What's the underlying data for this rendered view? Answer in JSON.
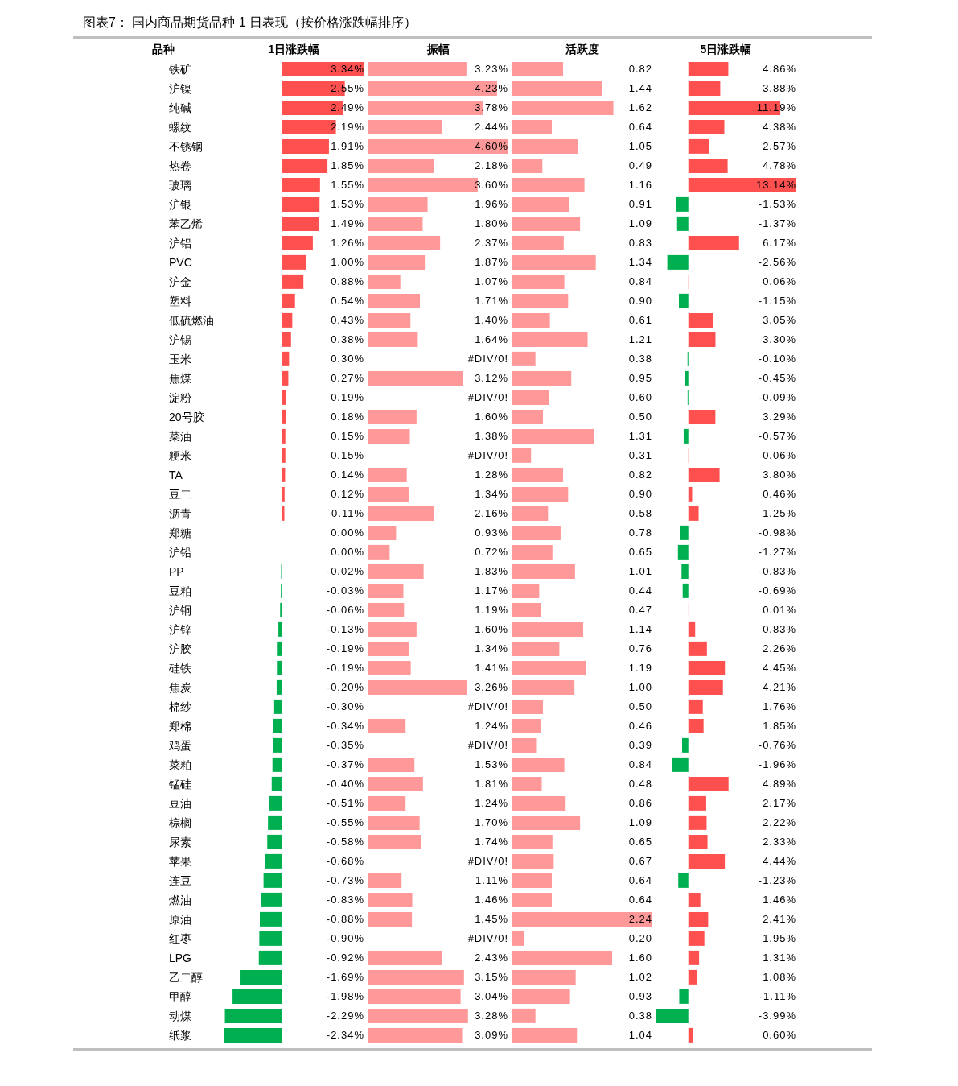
{
  "chart_data": [
    {
      "type": "bar",
      "orientation": "horizontal",
      "title": "图表7： 国内商品期货品种 1 日表现（按价格涨跌幅排序）",
      "ylabel": "品种",
      "xlabel": "1日涨跌幅",
      "categories": [
        "铁矿",
        "沪镍",
        "纯碱",
        "螺纹",
        "不锈钢",
        "热卷",
        "玻璃",
        "沪银",
        "苯乙烯",
        "沪铝",
        "PVC",
        "沪金",
        "塑料",
        "低硫燃油",
        "沪锡",
        "玉米",
        "焦煤",
        "淀粉",
        "20号胶",
        "菜油",
        "粳米",
        "TA",
        "豆二",
        "沥青",
        "郑糖",
        "沪铅",
        "PP",
        "豆粕",
        "沪铜",
        "沪锌",
        "沪胶",
        "硅铁",
        "焦炭",
        "棉纱",
        "郑棉",
        "鸡蛋",
        "菜粕",
        "锰硅",
        "豆油",
        "棕榈",
        "尿素",
        "苹果",
        "连豆",
        "燃油",
        "原油",
        "红枣",
        "LPG",
        "乙二醇",
        "甲醇",
        "动煤",
        "纸浆"
      ],
      "values": [
        3.34,
        2.55,
        2.49,
        2.19,
        1.91,
        1.85,
        1.55,
        1.53,
        1.49,
        1.26,
        1.0,
        0.88,
        0.54,
        0.43,
        0.38,
        0.3,
        0.27,
        0.19,
        0.18,
        0.15,
        0.15,
        0.14,
        0.12,
        0.11,
        0.0,
        0.0,
        -0.02,
        -0.03,
        -0.06,
        -0.13,
        -0.19,
        -0.19,
        -0.2,
        -0.3,
        -0.34,
        -0.35,
        -0.37,
        -0.4,
        -0.51,
        -0.55,
        -0.58,
        -0.68,
        -0.73,
        -0.83,
        -0.88,
        -0.9,
        -0.92,
        -1.69,
        -1.98,
        -2.29,
        -2.34
      ],
      "value_labels": [
        "3.34%",
        "2.55%",
        "2.49%",
        "2.19%",
        "1.91%",
        "1.85%",
        "1.55%",
        "1.53%",
        "1.49%",
        "1.26%",
        "1.00%",
        "0.88%",
        "0.54%",
        "0.43%",
        "0.38%",
        "0.30%",
        "0.27%",
        "0.19%",
        "0.18%",
        "0.15%",
        "0.15%",
        "0.14%",
        "0.12%",
        "0.11%",
        "0.00%",
        "0.00%",
        "-0.02%",
        "-0.03%",
        "-0.06%",
        "-0.13%",
        "-0.19%",
        "-0.19%",
        "-0.20%",
        "-0.30%",
        "-0.34%",
        "-0.35%",
        "-0.37%",
        "-0.40%",
        "-0.51%",
        "-0.55%",
        "-0.58%",
        "-0.68%",
        "-0.73%",
        "-0.83%",
        "-0.88%",
        "-0.90%",
        "-0.92%",
        "-1.69%",
        "-1.98%",
        "-2.29%",
        "-2.34%"
      ],
      "colors": [
        "#ff5050",
        "#ff5050",
        "#ff5050",
        "#ff5050",
        "#ff5050",
        "#ff5050",
        "#ff5050",
        "#ff5050",
        "#ff5050",
        "#ff5050",
        "#ff5050",
        "#ff5050",
        "#ff5050",
        "#ff5050",
        "#ff5050",
        "#ff5050",
        "#ff5050",
        "#ff5050",
        "#ff5050",
        "#ff5050",
        "#ff5050",
        "#ff5050",
        "#ff5050",
        "#ff5050",
        "#ff5050",
        "#ff5050",
        "#00b050",
        "#00b050",
        "#00b050",
        "#00b050",
        "#00b050",
        "#00b050",
        "#00b050",
        "#00b050",
        "#00b050",
        "#00b050",
        "#00b050",
        "#00b050",
        "#00b050",
        "#00b050",
        "#00b050",
        "#00b050",
        "#00b050",
        "#00b050",
        "#00b050",
        "#00b050",
        "#00b050",
        "#00b050",
        "#00b050",
        "#00b050",
        "#00b050"
      ],
      "tick_labels": "y"
    },
    {
      "type": "bar",
      "orientation": "horizontal",
      "xlabel": "振幅",
      "tick_labels": false,
      "values": [
        3.23,
        4.23,
        3.78,
        2.44,
        4.6,
        2.18,
        3.6,
        1.96,
        1.8,
        2.37,
        1.87,
        1.07,
        1.71,
        1.4,
        1.64,
        null,
        3.12,
        null,
        1.6,
        1.38,
        null,
        1.28,
        1.34,
        2.16,
        0.93,
        0.72,
        1.83,
        1.17,
        1.19,
        1.6,
        1.34,
        1.41,
        3.26,
        null,
        1.24,
        null,
        1.53,
        1.81,
        1.24,
        1.7,
        1.74,
        null,
        1.11,
        1.46,
        1.45,
        null,
        2.43,
        3.15,
        3.04,
        3.28,
        3.09
      ],
      "value_labels": [
        "3.23%",
        "4.23%",
        "3.78%",
        "2.44%",
        "4.60%",
        "2.18%",
        "3.60%",
        "1.96%",
        "1.80%",
        "2.37%",
        "1.87%",
        "1.07%",
        "1.71%",
        "1.40%",
        "1.64%",
        "#DIV/0!",
        "3.12%",
        "#DIV/0!",
        "1.60%",
        "1.38%",
        "#DIV/0!",
        "1.28%",
        "1.34%",
        "2.16%",
        "0.93%",
        "0.72%",
        "1.83%",
        "1.17%",
        "1.19%",
        "1.60%",
        "1.34%",
        "1.41%",
        "3.26%",
        "#DIV/0!",
        "1.24%",
        "#DIV/0!",
        "1.53%",
        "1.81%",
        "1.24%",
        "1.70%",
        "1.74%",
        "#DIV/0!",
        "1.11%",
        "1.46%",
        "1.45%",
        "#DIV/0!",
        "2.43%",
        "3.15%",
        "3.04%",
        "3.28%",
        "3.09%"
      ],
      "color": "#ff9999"
    },
    {
      "type": "bar",
      "orientation": "horizontal",
      "xlabel": "活跃度",
      "tick_labels": false,
      "values": [
        0.82,
        1.44,
        1.62,
        0.64,
        1.05,
        0.49,
        1.16,
        0.91,
        1.09,
        0.83,
        1.34,
        0.84,
        0.9,
        0.61,
        1.21,
        0.38,
        0.95,
        0.6,
        0.5,
        1.31,
        0.31,
        0.82,
        0.9,
        0.58,
        0.78,
        0.65,
        1.01,
        0.44,
        0.47,
        1.14,
        0.76,
        1.19,
        1.0,
        0.5,
        0.46,
        0.39,
        0.84,
        0.48,
        0.86,
        1.09,
        0.65,
        0.67,
        0.64,
        0.64,
        2.24,
        0.2,
        1.6,
        1.02,
        0.93,
        0.38,
        1.04
      ],
      "value_labels": [
        "0.82",
        "1.44",
        "1.62",
        "0.64",
        "1.05",
        "0.49",
        "1.16",
        "0.91",
        "1.09",
        "0.83",
        "1.34",
        "0.84",
        "0.90",
        "0.61",
        "1.21",
        "0.38",
        "0.95",
        "0.60",
        "0.50",
        "1.31",
        "0.31",
        "0.82",
        "0.90",
        "0.58",
        "0.78",
        "0.65",
        "1.01",
        "0.44",
        "0.47",
        "1.14",
        "0.76",
        "1.19",
        "1.00",
        "0.50",
        "0.46",
        "0.39",
        "0.84",
        "0.48",
        "0.86",
        "1.09",
        "0.65",
        "0.67",
        "0.64",
        "0.64",
        "2.24",
        "0.20",
        "1.60",
        "1.02",
        "0.93",
        "0.38",
        "1.04"
      ],
      "color": "#ff9999"
    },
    {
      "type": "bar",
      "orientation": "horizontal",
      "xlabel": "5日涨跌幅",
      "tick_labels": false,
      "values": [
        4.86,
        3.88,
        11.19,
        4.38,
        2.57,
        4.78,
        13.14,
        -1.53,
        -1.37,
        6.17,
        -2.56,
        0.06,
        -1.15,
        3.05,
        3.3,
        -0.1,
        -0.45,
        -0.09,
        3.29,
        -0.57,
        0.06,
        3.8,
        0.46,
        1.25,
        -0.98,
        -1.27,
        -0.83,
        -0.69,
        0.01,
        0.83,
        2.26,
        4.45,
        4.21,
        1.76,
        1.85,
        -0.76,
        -1.96,
        4.89,
        2.17,
        2.22,
        2.33,
        4.44,
        -1.23,
        1.46,
        2.41,
        1.95,
        1.31,
        1.08,
        -1.11,
        -3.99,
        0.6
      ],
      "value_labels": [
        "4.86%",
        "3.88%",
        "11.19%",
        "4.38%",
        "2.57%",
        "4.78%",
        "13.14%",
        "-1.53%",
        "-1.37%",
        "6.17%",
        "-2.56%",
        "0.06%",
        "-1.15%",
        "3.05%",
        "3.30%",
        "-0.10%",
        "-0.45%",
        "-0.09%",
        "3.29%",
        "-0.57%",
        "0.06%",
        "3.80%",
        "0.46%",
        "1.25%",
        "-0.98%",
        "-1.27%",
        "-0.83%",
        "-0.69%",
        "0.01%",
        "0.83%",
        "2.26%",
        "4.45%",
        "4.21%",
        "1.76%",
        "1.85%",
        "-0.76%",
        "-1.96%",
        "4.89%",
        "2.17%",
        "2.22%",
        "2.33%",
        "4.44%",
        "-1.23%",
        "1.46%",
        "2.41%",
        "1.95%",
        "1.31%",
        "1.08%",
        "-1.11%",
        "-3.99%",
        "0.60%"
      ],
      "colors": [
        "#ff5050",
        "#ff5050",
        "#ff5050",
        "#ff5050",
        "#ff5050",
        "#ff5050",
        "#ff5050",
        "#00b050",
        "#00b050",
        "#ff5050",
        "#00b050",
        "#ff5050",
        "#00b050",
        "#ff5050",
        "#ff5050",
        "#00b050",
        "#00b050",
        "#00b050",
        "#ff5050",
        "#00b050",
        "#ff5050",
        "#ff5050",
        "#ff5050",
        "#ff5050",
        "#00b050",
        "#00b050",
        "#00b050",
        "#00b050",
        "#ff5050",
        "#ff5050",
        "#ff5050",
        "#ff5050",
        "#ff5050",
        "#ff5050",
        "#ff5050",
        "#00b050",
        "#00b050",
        "#ff5050",
        "#ff5050",
        "#ff5050",
        "#ff5050",
        "#ff5050",
        "#00b050",
        "#ff5050",
        "#ff5050",
        "#ff5050",
        "#ff5050",
        "#ff5050",
        "#00b050",
        "#00b050",
        "#ff5050"
      ]
    }
  ]
}
